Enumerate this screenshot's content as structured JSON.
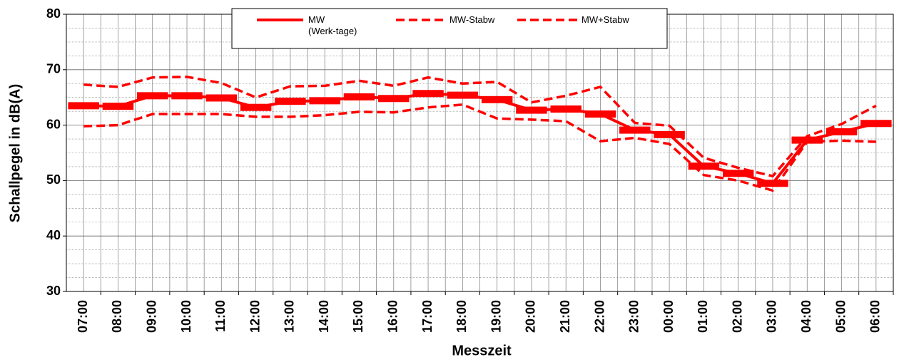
{
  "chart_data": {
    "type": "line",
    "x_label": "Messzeit",
    "y_label": "Schallpegel in dB(A)",
    "categories": [
      "07:00",
      "08:00",
      "09:00",
      "10:00",
      "11:00",
      "12:00",
      "13:00",
      "14:00",
      "15:00",
      "16:00",
      "17:00",
      "18:00",
      "19:00",
      "20:00",
      "21:00",
      "22:00",
      "23:00",
      "00:00",
      "01:00",
      "02:00",
      "03:00",
      "04:00",
      "05:00",
      "06:00"
    ],
    "series": [
      {
        "name": "MW\n(Werk-tage)",
        "color": "#ff0000",
        "style": "solid",
        "values": [
          63.5,
          63.4,
          65.3,
          65.3,
          64.9,
          63.2,
          64.3,
          64.4,
          65.1,
          64.8,
          65.7,
          65.4,
          64.6,
          62.7,
          62.9,
          62.0,
          59.1,
          58.3,
          52.6,
          51.3,
          49.5,
          57.3,
          58.8,
          60.3
        ]
      },
      {
        "name": "MW-Stabw",
        "color": "#ff0000",
        "style": "dashed",
        "values": [
          59.8,
          60.0,
          62.0,
          62.0,
          62.0,
          61.5,
          61.5,
          61.8,
          62.4,
          62.3,
          63.2,
          63.7,
          61.2,
          61.0,
          60.7,
          57.1,
          57.7,
          56.6,
          51.0,
          50.0,
          48.2,
          57.0,
          57.2,
          57.0
        ]
      },
      {
        "name": "MW+Stabw",
        "color": "#ff0000",
        "style": "dashed",
        "values": [
          67.3,
          66.9,
          68.6,
          68.7,
          67.6,
          65.0,
          67.0,
          67.1,
          68.0,
          67.1,
          68.6,
          67.5,
          67.8,
          64.1,
          65.3,
          66.9,
          60.4,
          59.9,
          54.1,
          52.3,
          50.8,
          58.0,
          60.2,
          63.5
        ]
      }
    ],
    "ylim": [
      30,
      80
    ],
    "yticks": [
      30,
      40,
      50,
      60,
      70,
      80
    ],
    "grid": true
  }
}
